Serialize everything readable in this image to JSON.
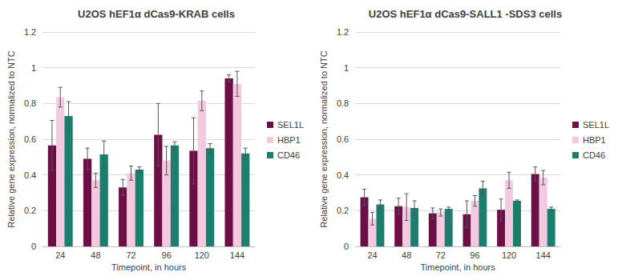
{
  "chart_data": [
    {
      "type": "bar",
      "title": "U2OS hEF1α dCas9-KRAB cells",
      "x_label": "Timepoint, in hours",
      "y_label": "Relative gene expression, normalized to NTC",
      "categories": [
        "24",
        "48",
        "72",
        "96",
        "120",
        "144"
      ],
      "series": [
        {
          "name": "SEL1L",
          "color": "#6b0f46",
          "values": [
            0.565,
            0.49,
            0.33,
            0.625,
            0.535,
            0.94
          ],
          "errors": [
            0.14,
            0.06,
            0.045,
            0.175,
            0.185,
            0.02
          ]
        },
        {
          "name": "HBP1",
          "color": "#f2c9df",
          "values": [
            0.835,
            0.37,
            0.41,
            0.48,
            0.815,
            0.91
          ],
          "errors": [
            0.055,
            0.04,
            0.04,
            0.08,
            0.055,
            0.07
          ]
        },
        {
          "name": "CD46",
          "color": "#1c7f6e",
          "values": [
            0.73,
            0.515,
            0.43,
            0.565,
            0.55,
            0.52
          ],
          "errors": [
            0.08,
            0.075,
            0.015,
            0.02,
            0.025,
            0.03
          ]
        }
      ],
      "ylim": [
        0,
        1.2
      ],
      "yticks": [
        0,
        0.2,
        0.4,
        0.6,
        0.8,
        1,
        1.2
      ],
      "grid": true,
      "legend": "right"
    },
    {
      "type": "bar",
      "title": "U2OS hEF1α dCas9-SALL1 -SDS3 cells",
      "x_label": "Timepoint, in hours",
      "y_label": "Relative gene expression, normalized to NTC",
      "categories": [
        "24",
        "48",
        "72",
        "96",
        "120",
        "144"
      ],
      "series": [
        {
          "name": "SEL1L",
          "color": "#6b0f46",
          "values": [
            0.275,
            0.225,
            0.185,
            0.18,
            0.205,
            0.405
          ],
          "errors": [
            0.045,
            0.045,
            0.03,
            0.075,
            0.06,
            0.04
          ]
        },
        {
          "name": "HBP1",
          "color": "#f2c9df",
          "values": [
            0.155,
            0.22,
            0.19,
            0.255,
            0.37,
            0.385
          ],
          "errors": [
            0.035,
            0.075,
            0.02,
            0.03,
            0.045,
            0.04
          ]
        },
        {
          "name": "CD46",
          "color": "#1c7f6e",
          "values": [
            0.235,
            0.215,
            0.21,
            0.325,
            0.255,
            0.21
          ],
          "errors": [
            0.025,
            0.04,
            0.01,
            0.04,
            0.005,
            0.01
          ]
        }
      ],
      "ylim": [
        0,
        1.2
      ],
      "yticks": [
        0,
        0.2,
        0.4,
        0.6,
        0.8,
        1,
        1.2
      ],
      "grid": true,
      "legend": "right"
    }
  ]
}
